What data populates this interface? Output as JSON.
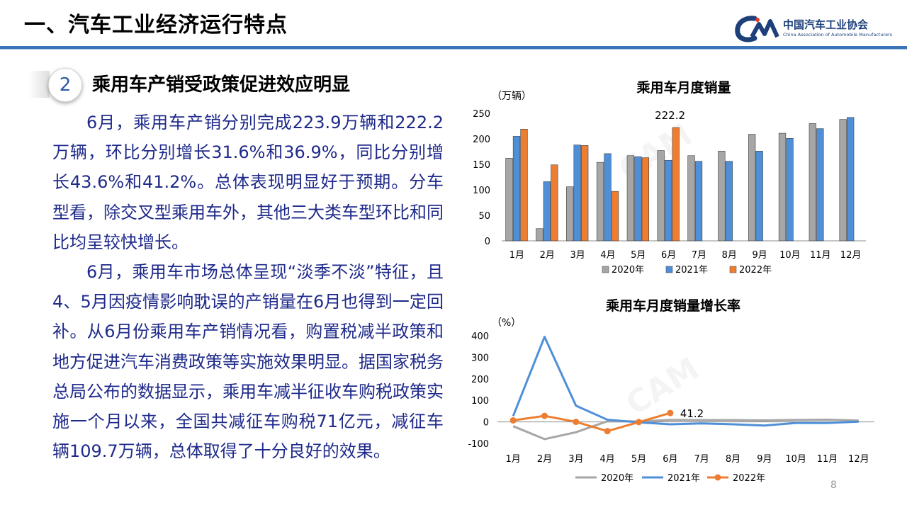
{
  "header": {
    "title": "一、汽车工业经济运行特点"
  },
  "logo": {
    "cn": "中国汽车工业协会",
    "en": "China Association of Automobile Manufacturers",
    "mark": "CAM"
  },
  "section": {
    "number": "2",
    "title": "乘用车产销受政策促进效应明显"
  },
  "body": {
    "p1": "6月，乘用车产销分别完成223.9万辆和222.2万辆，环比分别增长31.6%和36.9%，同比分别增长43.6%和41.2%。总体表现明显好于预期。分车型看，除交叉型乘用车外，其他三大类车型环比和同比均呈较快增长。",
    "p2": "6月，乘用车市场总体呈现“淡季不淡”特征，且4、5月因疫情影响耽误的产销量在6月也得到一定回补。从6月份乘用车产销情况看，购置税减半政策和地方促进汽车消费政策等实施效果明显。据国家税务总局公布的数据显示，乘用车减半征收车购税政策实施一个月以来，全国共减征车购税71亿元，减征车辆109.7万辆，总体取得了十分良好的效果。"
  },
  "page_number": "8",
  "colors": {
    "s2020": "#a6a6a6",
    "s2021": "#4f8fd8",
    "s2022": "#ed7d31",
    "text": "#1f2a8a",
    "accent": "#3a73b8"
  },
  "chart_data": [
    {
      "type": "bar",
      "title": "乘用车月度销量",
      "ylabel": "（万辆）",
      "categories": [
        "1月",
        "2月",
        "3月",
        "4月",
        "5月",
        "6月",
        "7月",
        "8月",
        "9月",
        "10月",
        "11月",
        "12月"
      ],
      "ylim": [
        0,
        250
      ],
      "yticks": [
        0,
        50,
        100,
        150,
        200,
        250
      ],
      "legend_position": "bottom",
      "annotation": {
        "text": "222.2",
        "series": 2,
        "index": 5
      },
      "series": [
        {
          "name": "2020年",
          "color": "#a6a6a6",
          "values": [
            162,
            24,
            106,
            154,
            167,
            177,
            167,
            176,
            209,
            211,
            230,
            238
          ]
        },
        {
          "name": "2021年",
          "color": "#4f8fd8",
          "values": [
            205,
            116,
            188,
            171,
            165,
            158,
            156,
            156,
            176,
            201,
            220,
            242
          ]
        },
        {
          "name": "2022年",
          "color": "#ed7d31",
          "values": [
            219,
            149,
            187,
            97,
            163,
            222.2,
            null,
            null,
            null,
            null,
            null,
            null
          ]
        }
      ]
    },
    {
      "type": "line",
      "title": "乘用车月度销量增长率",
      "ylabel": "（%）",
      "categories": [
        "1月",
        "2月",
        "3月",
        "4月",
        "5月",
        "6月",
        "7月",
        "8月",
        "9月",
        "10月",
        "11月",
        "12月"
      ],
      "ylim": [
        -100,
        400
      ],
      "yticks": [
        -100,
        0,
        100,
        200,
        300,
        400
      ],
      "legend_position": "bottom",
      "annotation": {
        "text": "41.2",
        "series": 2,
        "index": 5
      },
      "series": [
        {
          "name": "2020年",
          "color": "#a6a6a6",
          "values": [
            -20,
            -80,
            -48,
            3,
            2,
            9,
            8,
            8,
            7,
            9,
            10,
            6
          ]
        },
        {
          "name": "2021年",
          "color": "#4f8fd8",
          "values": [
            27,
            395,
            75,
            10,
            -2,
            -11,
            -7,
            -11,
            -17,
            -5,
            -5,
            1
          ]
        },
        {
          "name": "2022年",
          "color": "#ed7d31",
          "values": [
            7,
            28,
            0,
            -43,
            -1,
            41.2,
            null,
            null,
            null,
            null,
            null,
            null
          ]
        }
      ]
    }
  ]
}
